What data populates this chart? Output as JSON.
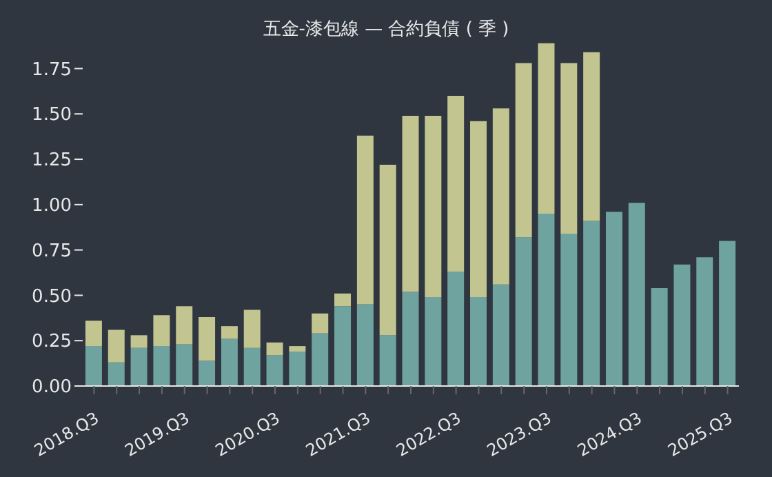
{
  "chart_data": {
    "type": "bar",
    "title": "五金-漆包線 — 合約負債 ( 季 )",
    "stacked": true,
    "categories": [
      "2018.Q3",
      null,
      null,
      null,
      "2019.Q3",
      null,
      null,
      null,
      "2020.Q3",
      null,
      null,
      null,
      "2021.Q3",
      null,
      null,
      null,
      "2022.Q3",
      null,
      null,
      null,
      "2023.Q3",
      null,
      null,
      null,
      "2024.Q3",
      null,
      null,
      null,
      "2025.Q3"
    ],
    "series": [
      {
        "color": "#6fa3a0",
        "values": [
          0.22,
          0.13,
          0.21,
          0.22,
          0.23,
          0.14,
          0.26,
          0.21,
          0.17,
          0.19,
          0.29,
          0.44,
          0.45,
          0.28,
          0.52,
          0.49,
          0.63,
          0.49,
          0.56,
          0.82,
          0.95,
          0.84,
          0.91,
          0.96,
          1.01,
          0.54,
          0.67,
          0.71,
          0.8
        ]
      },
      {
        "color": "#c2c590",
        "values": [
          0.14,
          0.18,
          0.07,
          0.17,
          0.21,
          0.24,
          0.07,
          0.21,
          0.07,
          0.03,
          0.11,
          0.07,
          0.93,
          0.94,
          0.97,
          1.0,
          0.97,
          0.97,
          0.97,
          0.96,
          0.94,
          0.94,
          0.93,
          null,
          null,
          null,
          null,
          null,
          null
        ]
      }
    ],
    "ylim": [
      0,
      1.9
    ],
    "yticks": [
      {
        "value": 0,
        "label": "0.00"
      },
      {
        "value": 0.25,
        "label": "0.25"
      },
      {
        "value": 0.5,
        "label": "0.50"
      },
      {
        "value": 0.75,
        "label": "0.75"
      },
      {
        "value": 1,
        "label": "1.00"
      },
      {
        "value": 1.25,
        "label": "1.25"
      },
      {
        "value": 1.5,
        "label": "1.50"
      },
      {
        "value": 1.75,
        "label": "1.75"
      }
    ],
    "grid": false,
    "legend": false
  }
}
